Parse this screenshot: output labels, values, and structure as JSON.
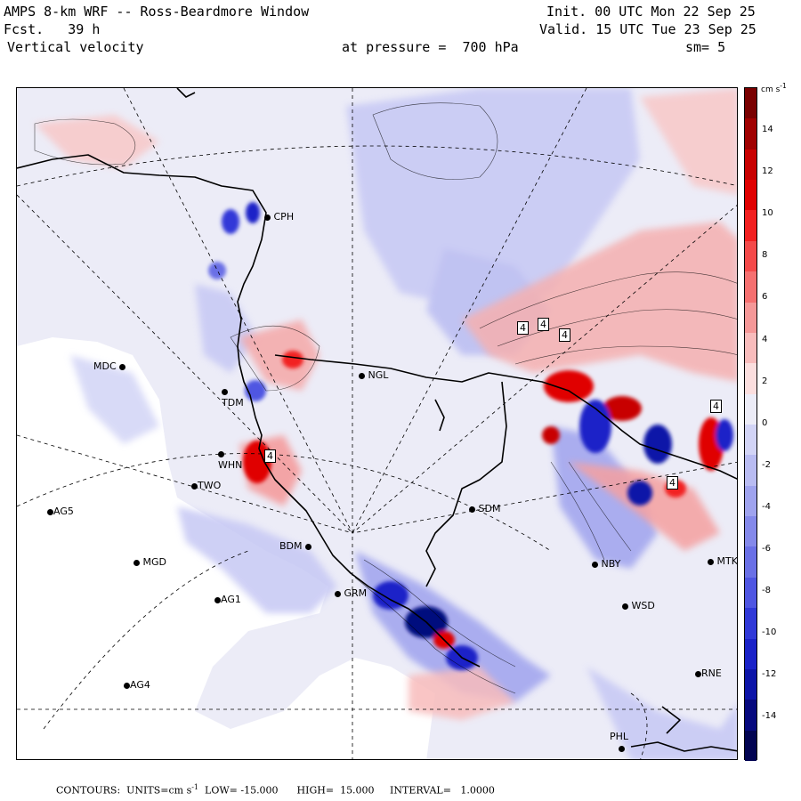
{
  "header": {
    "title": "AMPS 8-km WRF -- Ross-Beardmore Window",
    "forecast": "Fcst.   39 h",
    "variable": "Vertical velocity",
    "init": "Init. 00 UTC Mon 22 Sep 25",
    "valid": "Valid. 15 UTC Tue 23 Sep 25",
    "pressure": "at pressure =  700 hPa",
    "smoothing": "sm= 5"
  },
  "colorbar": {
    "unit": "cm s",
    "unit_sup": "-1",
    "ticks": [
      "14",
      "12",
      "10",
      "8",
      "6",
      "4",
      "2",
      "0",
      "-2",
      "-4",
      "-6",
      "-8",
      "-10",
      "-12",
      "-14"
    ],
    "colors": [
      "#7a0000",
      "#a00000",
      "#c80000",
      "#e00000",
      "#f22020",
      "#f44a4a",
      "#f57070",
      "#f59898",
      "#f8bcbc",
      "#fbdede",
      "#ececf7",
      "#d2d4f6",
      "#b9bcf2",
      "#9fa3ee",
      "#8489ea",
      "#6a70e6",
      "#4f56e2",
      "#3039d8",
      "#1a22c8",
      "#0c14a8",
      "#06097e",
      "#020452"
    ]
  },
  "stations": [
    {
      "label": "CPH"
    },
    {
      "label": "NGL"
    },
    {
      "label": "MDC"
    },
    {
      "label": "TDM"
    },
    {
      "label": "WHN"
    },
    {
      "label": "TWO"
    },
    {
      "label": "AG5"
    },
    {
      "label": "SDM"
    },
    {
      "label": "BDM"
    },
    {
      "label": "MGD"
    },
    {
      "label": "GRM"
    },
    {
      "label": "AG1"
    },
    {
      "label": "NBY"
    },
    {
      "label": "MTK"
    },
    {
      "label": "WSD"
    },
    {
      "label": "RNE"
    },
    {
      "label": "AG4"
    },
    {
      "label": "PHL"
    }
  ],
  "contour_labels": [
    "4",
    "4",
    "4",
    "4",
    "4",
    "4"
  ],
  "footer": {
    "contours": "CONTOURS:  UNITS=cm s",
    "sup": "-1",
    "rest": "  LOW= -15.000      HIGH=  15.000     INTERVAL=   1.0000"
  },
  "colors": {
    "warm": "#f4a0a0",
    "cool": "#b9bcf2",
    "neutral": "#ececf7",
    "land_line": "#000000"
  }
}
